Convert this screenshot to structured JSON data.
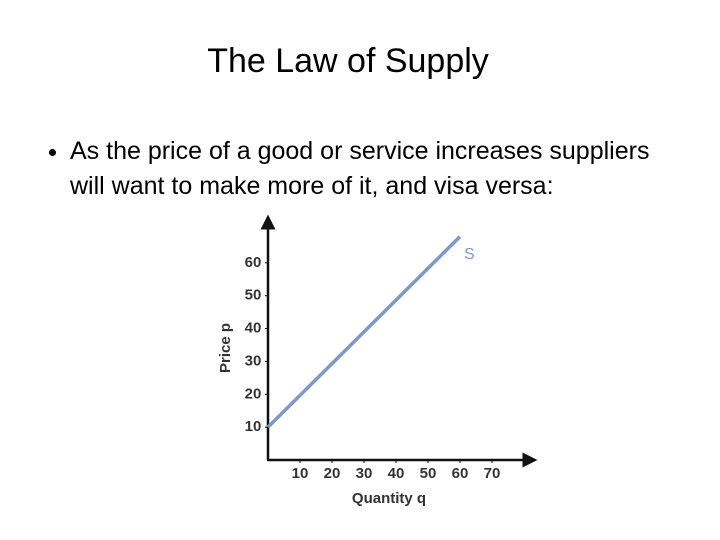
{
  "title": "The Law of Supply",
  "bullets": [
    "As the price of a good or service increases suppliers will want to make more of it, and visa versa:"
  ],
  "chart_data": {
    "type": "line",
    "xlabel": "Quantity q",
    "ylabel": "Price p",
    "x": [
      0,
      60
    ],
    "series": [
      {
        "name": "S",
        "color": "#7f98c8",
        "values": [
          10,
          68
        ]
      }
    ],
    "xlim": [
      0,
      80
    ],
    "ylim": [
      0,
      70
    ],
    "xticks": [
      10,
      20,
      30,
      40,
      50,
      60,
      70
    ],
    "yticks": [
      10,
      20,
      30,
      40,
      50,
      60
    ]
  }
}
